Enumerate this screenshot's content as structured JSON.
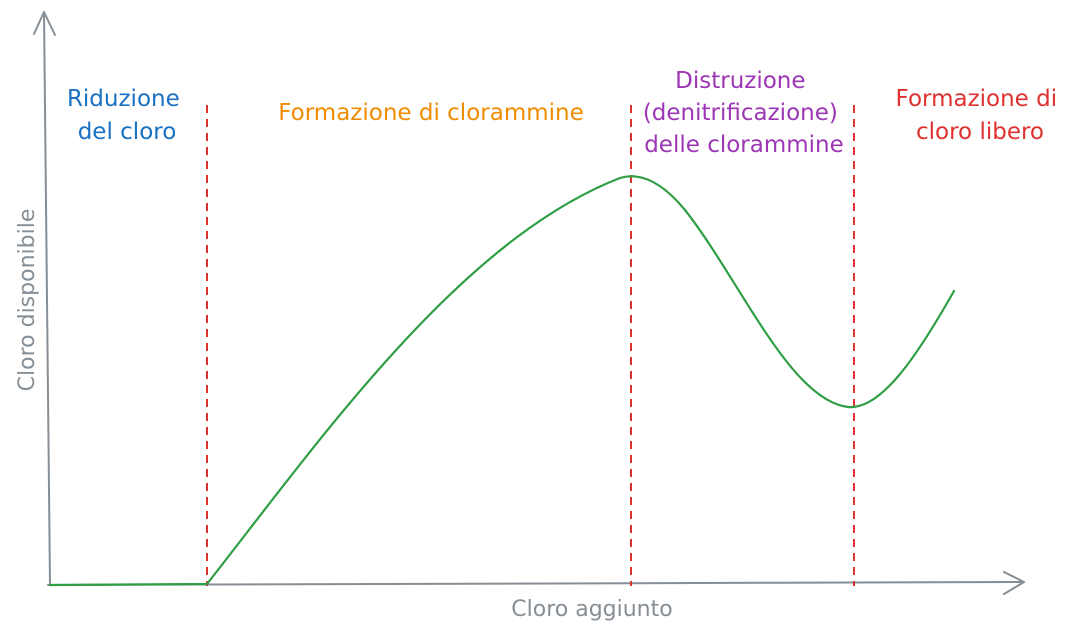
{
  "axes": {
    "x_label": "Cloro aggiunto",
    "y_label": "Cloro disponibile"
  },
  "regions": [
    {
      "id": "riduzione",
      "lines": [
        "Riduzione",
        "del cloro"
      ],
      "color": "#1971c2"
    },
    {
      "id": "formazione-clorammine",
      "lines": [
        "Formazione di clorammine"
      ],
      "color": "#f08c00"
    },
    {
      "id": "distruzione",
      "lines": [
        "Distruzione",
        "(denitrificazione)",
        "delle clorammine"
      ],
      "color": "#9c36b5"
    },
    {
      "id": "cloro-libero",
      "lines": [
        "Formazione di",
        "cloro libero"
      ],
      "color": "#e03131"
    }
  ],
  "colors": {
    "axis": "#868e96",
    "divider": "#e03131",
    "curve": "#2f9e44"
  }
}
